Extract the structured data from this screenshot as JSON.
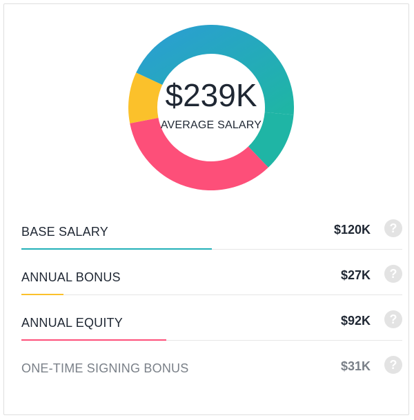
{
  "summary": {
    "total_value": "$239K",
    "total_label": "AVERAGE SALARY"
  },
  "colors": {
    "base_salary": "#2a9fd0",
    "annual_bonus": "#fbc12b",
    "annual_equity": "#fd4f79",
    "signing_bonus": "#1fb5a5",
    "gradient_start": "#2a9fd0",
    "gradient_end": "#1fb5a5"
  },
  "components": [
    {
      "label": "BASE SALARY",
      "value": "$120K",
      "amount": 120,
      "help_icon": "question-circle-icon",
      "bar_color": "#22b0b8",
      "bar_fraction": 0.5
    },
    {
      "label": "ANNUAL BONUS",
      "value": "$27K",
      "amount": 27,
      "help_icon": "question-circle-icon",
      "bar_color": "#fbc12b",
      "bar_fraction": 0.11
    },
    {
      "label": "ANNUAL EQUITY",
      "value": "$92K",
      "amount": 92,
      "help_icon": "question-circle-icon",
      "bar_color": "#fd4f79",
      "bar_fraction": 0.38
    },
    {
      "label": "ONE-TIME SIGNING BONUS",
      "value": "$31K",
      "amount": 31,
      "help_icon": "question-circle-icon",
      "bar_color": "",
      "bar_fraction": 0
    }
  ],
  "help_glyph": "?"
}
